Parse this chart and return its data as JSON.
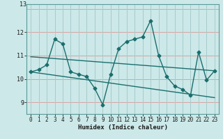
{
  "title": "",
  "xlabel": "Humidex (Indice chaleur)",
  "background_color": "#cce8e8",
  "grid_color_h": "#dda0a0",
  "grid_color_v": "#a8cccc",
  "line_color": "#1a6e6e",
  "xlim": [
    -0.5,
    23.5
  ],
  "ylim": [
    8.5,
    13.2
  ],
  "yticks": [
    9,
    10,
    11,
    12
  ],
  "ytop_label": "13",
  "xticks": [
    0,
    1,
    2,
    3,
    4,
    5,
    6,
    7,
    8,
    9,
    10,
    11,
    12,
    13,
    14,
    15,
    16,
    17,
    18,
    19,
    20,
    21,
    22,
    23
  ],
  "data_x": [
    0,
    1,
    2,
    3,
    4,
    5,
    6,
    7,
    8,
    9,
    10,
    11,
    12,
    13,
    14,
    15,
    16,
    17,
    18,
    19,
    20,
    21,
    22,
    23
  ],
  "data_y": [
    10.3,
    10.4,
    10.6,
    11.7,
    11.5,
    10.3,
    10.2,
    10.1,
    9.6,
    8.9,
    10.2,
    11.3,
    11.6,
    11.7,
    11.8,
    12.5,
    11.0,
    10.1,
    9.7,
    9.55,
    9.3,
    11.15,
    9.95,
    10.35
  ],
  "trend1_x": [
    0,
    23
  ],
  "trend1_y": [
    10.95,
    10.35
  ],
  "trend2_x": [
    0,
    23
  ],
  "trend2_y": [
    10.3,
    9.2
  ],
  "marker": "D",
  "markersize": 2.5,
  "linewidth": 1.0,
  "tick_fontsize": 5.5,
  "xlabel_fontsize": 6.5
}
